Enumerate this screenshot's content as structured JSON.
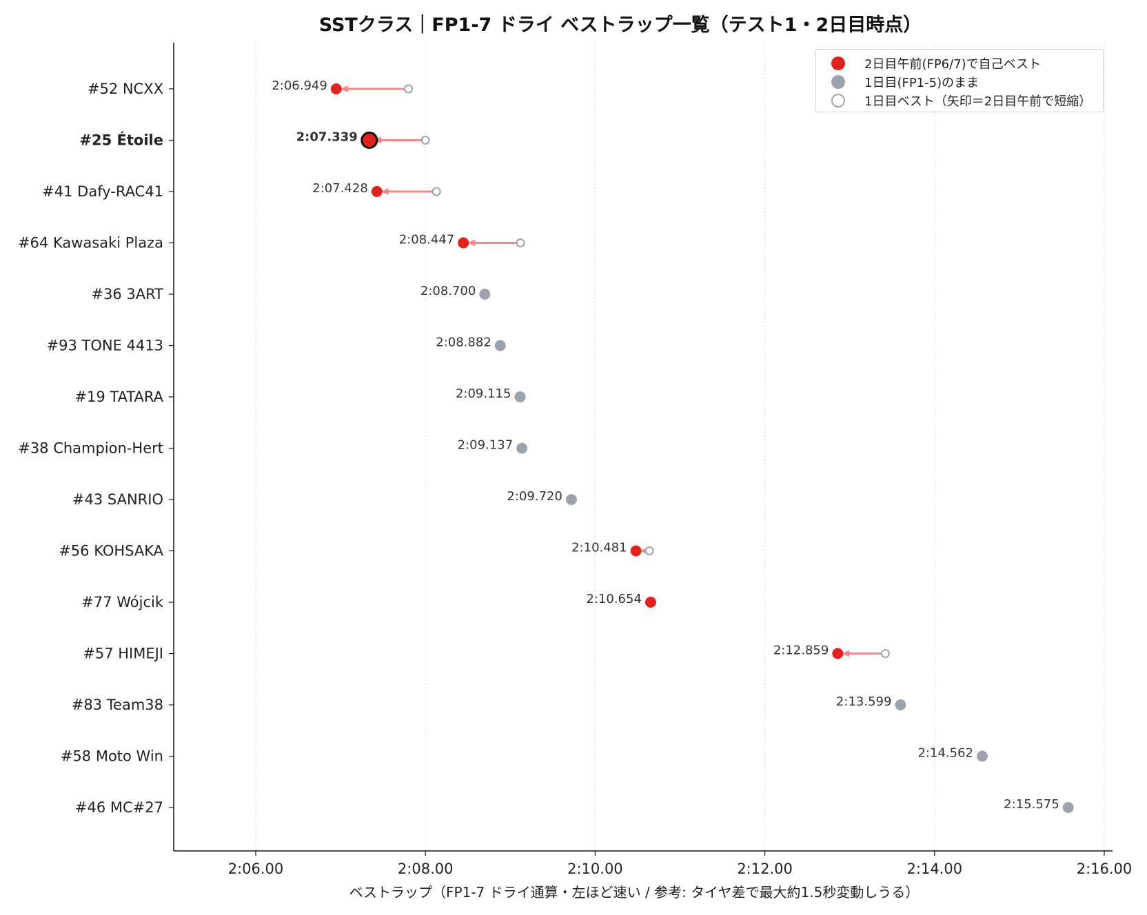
{
  "chart_data": {
    "type": "scatter",
    "title": "SSTクラス｜FP1-7 ドライ ベストラップ一覧（テスト1・2日目時点）",
    "xlabel": "ベストラップ（FP1-7 ドライ通算・左ほど速い / 参考: タイヤ差で最大約1.5秒変動しうる）",
    "ylabel": "",
    "xlim": [
      125.0,
      136.0
    ],
    "x_ticks": [
      {
        "value": 126,
        "label": "2:06.00"
      },
      {
        "value": 128,
        "label": "2:08.00"
      },
      {
        "value": 130,
        "label": "2:10.00"
      },
      {
        "value": 132,
        "label": "2:12.00"
      },
      {
        "value": 134,
        "label": "2:14.00"
      },
      {
        "value": 136,
        "label": "2:16.00"
      }
    ],
    "grid": "vertical dotted",
    "legend_position": "top-right",
    "legend": [
      {
        "label": "2日目午前(FP6/7)で自己ベスト",
        "marker": "red-filled-circle"
      },
      {
        "label": "1日目(FP1-5)のまま",
        "marker": "gray-filled-circle"
      },
      {
        "label": "1日目ベスト（矢印＝2日目午前で短縮）",
        "marker": "gray-hollow-circle"
      }
    ],
    "colors": {
      "improved": "#e0231e",
      "unchanged": "#9aa3ae",
      "arrow": "#f08a87",
      "highlight_text": "#e0231e"
    },
    "riders": [
      {
        "name": "#52 NCXX",
        "best": 126.949,
        "best_label": "2:06.949",
        "day1_best": 127.8,
        "improved": true,
        "highlight": false
      },
      {
        "name": "#25 Étoile",
        "best": 127.339,
        "best_label": "2:07.339",
        "day1_best": 128.0,
        "improved": true,
        "highlight": true
      },
      {
        "name": "#41 Dafy-RAC41",
        "best": 127.428,
        "best_label": "2:07.428",
        "day1_best": 128.13,
        "improved": true,
        "highlight": false
      },
      {
        "name": "#64 Kawasaki Plaza",
        "best": 128.447,
        "best_label": "2:08.447",
        "day1_best": 129.12,
        "improved": true,
        "highlight": false
      },
      {
        "name": "#36 3ART",
        "best": 128.7,
        "best_label": "2:08.700",
        "day1_best": null,
        "improved": false,
        "highlight": false
      },
      {
        "name": "#93 TONE 4413",
        "best": 128.882,
        "best_label": "2:08.882",
        "day1_best": null,
        "improved": false,
        "highlight": false
      },
      {
        "name": "#19 TATARA",
        "best": 129.115,
        "best_label": "2:09.115",
        "day1_best": null,
        "improved": false,
        "highlight": false
      },
      {
        "name": "#38 Champion-Hert",
        "best": 129.137,
        "best_label": "2:09.137",
        "day1_best": null,
        "improved": false,
        "highlight": false
      },
      {
        "name": "#43 SANRIO",
        "best": 129.72,
        "best_label": "2:09.720",
        "day1_best": null,
        "improved": false,
        "highlight": false
      },
      {
        "name": "#56 KOHSAKA",
        "best": 130.481,
        "best_label": "2:10.481",
        "day1_best": 130.64,
        "improved": true,
        "highlight": false
      },
      {
        "name": "#77 Wójcik",
        "best": 130.654,
        "best_label": "2:10.654",
        "day1_best": null,
        "improved": true,
        "highlight": false
      },
      {
        "name": "#57 HIMEJI",
        "best": 132.859,
        "best_label": "2:12.859",
        "day1_best": 133.42,
        "improved": true,
        "highlight": false
      },
      {
        "name": "#83 Team38",
        "best": 133.599,
        "best_label": "2:13.599",
        "day1_best": null,
        "improved": false,
        "highlight": false
      },
      {
        "name": "#58 Moto Win",
        "best": 134.562,
        "best_label": "2:14.562",
        "day1_best": null,
        "improved": false,
        "highlight": false
      },
      {
        "name": "#46 MC#27",
        "best": 135.575,
        "best_label": "2:15.575",
        "day1_best": null,
        "improved": false,
        "highlight": false
      }
    ]
  }
}
